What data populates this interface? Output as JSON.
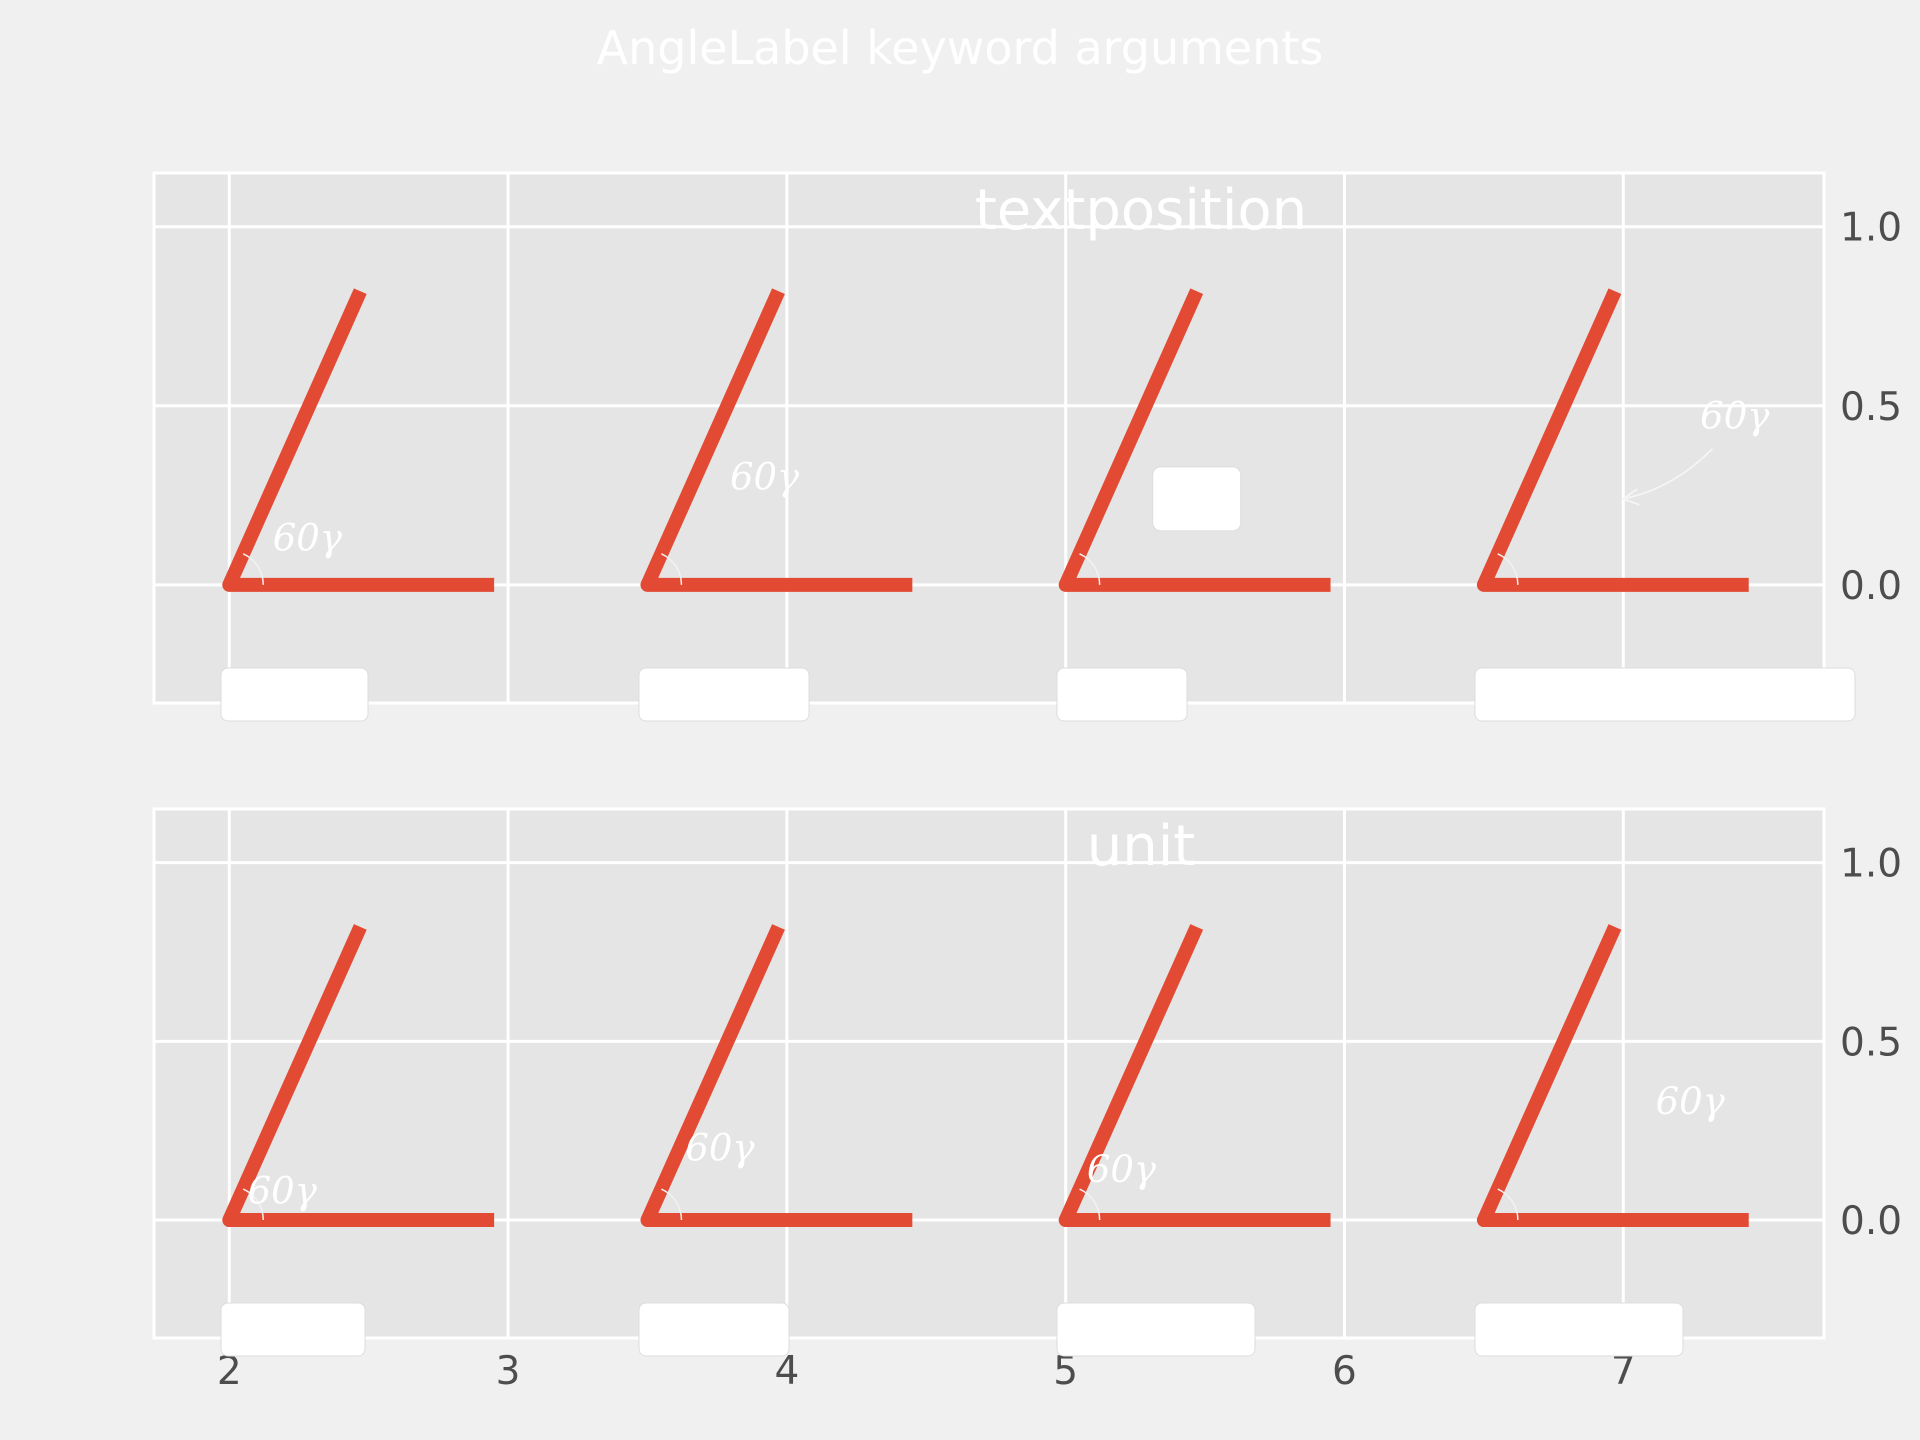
{
  "figure": {
    "title": "AngleLabel keyword arguments",
    "background": "#f0f0f0",
    "axes_facecolor": "#e5e5e5",
    "grid_color": "#ffffff",
    "angle_line_color": "#e24a33",
    "label_color": "#ffffff"
  },
  "chart_data": [
    {
      "type": "line",
      "title": "textposition",
      "xlim": [
        1.73,
        7.72
      ],
      "ylim": [
        -0.33,
        1.15
      ],
      "x_ticks": [
        2,
        3,
        4,
        5,
        6,
        7
      ],
      "x_tick_labels": [
        "",
        "",
        "",
        "",
        "",
        ""
      ],
      "y_ticks": [
        0.0,
        0.5,
        1.0
      ],
      "y_tick_labels": [
        "0.0",
        "0.5",
        "1.0"
      ],
      "yaxis_side": "right",
      "grid": true,
      "angles": [
        {
          "vertex": [
            2.0,
            0.0
          ],
          "ray_end": [
            2.47,
            0.82
          ],
          "base_end": [
            2.95,
            0.0
          ],
          "label": "60γ",
          "label_at": [
            2.28,
            0.13
          ],
          "arrow": false,
          "legend_box": true
        },
        {
          "vertex": [
            3.5,
            0.0
          ],
          "ray_end": [
            3.97,
            0.82
          ],
          "base_end": [
            4.45,
            0.0
          ],
          "label": "60γ",
          "label_at": [
            3.92,
            0.3
          ],
          "arrow": false,
          "legend_box": true
        },
        {
          "vertex": [
            5.0,
            0.0
          ],
          "ray_end": [
            5.47,
            0.82
          ],
          "base_end": [
            5.95,
            0.0
          ],
          "label": "",
          "label_at": [
            5.47,
            0.24
          ],
          "arrow": false,
          "legend_box": true
        },
        {
          "vertex": [
            6.5,
            0.0
          ],
          "ray_end": [
            6.97,
            0.82
          ],
          "base_end": [
            7.45,
            0.0
          ],
          "label": "60γ",
          "label_at": [
            7.4,
            0.47
          ],
          "arrow": true,
          "arrow_from": [
            7.32,
            0.38
          ],
          "arrow_to": [
            7.0,
            0.24
          ],
          "legend_box": true
        }
      ]
    },
    {
      "type": "line",
      "title": "unit",
      "xlim": [
        1.73,
        7.72
      ],
      "ylim": [
        -0.33,
        1.15
      ],
      "x_ticks": [
        2,
        3,
        4,
        5,
        6,
        7
      ],
      "x_tick_labels": [
        "2",
        "3",
        "4",
        "5",
        "6",
        "7"
      ],
      "y_ticks": [
        0.0,
        0.5,
        1.0
      ],
      "y_tick_labels": [
        "0.0",
        "0.5",
        "1.0"
      ],
      "yaxis_side": "right",
      "grid": true,
      "angles": [
        {
          "vertex": [
            2.0,
            0.0
          ],
          "ray_end": [
            2.47,
            0.82
          ],
          "base_end": [
            2.95,
            0.0
          ],
          "label": "60γ",
          "label_at": [
            2.19,
            0.08
          ],
          "arrow": false,
          "legend_box": true
        },
        {
          "vertex": [
            3.5,
            0.0
          ],
          "ray_end": [
            3.97,
            0.82
          ],
          "base_end": [
            4.45,
            0.0
          ],
          "label": "60γ",
          "label_at": [
            3.76,
            0.2
          ],
          "arrow": false,
          "legend_box": true
        },
        {
          "vertex": [
            5.0,
            0.0
          ],
          "ray_end": [
            5.47,
            0.82
          ],
          "base_end": [
            5.95,
            0.0
          ],
          "label": "60γ",
          "label_at": [
            5.2,
            0.14
          ],
          "arrow": false,
          "legend_box": true
        },
        {
          "vertex": [
            6.5,
            0.0
          ],
          "ray_end": [
            6.97,
            0.82
          ],
          "base_end": [
            7.45,
            0.0
          ],
          "label": "60γ",
          "label_at": [
            7.24,
            0.33
          ],
          "arrow": false,
          "legend_box": true
        }
      ]
    }
  ]
}
